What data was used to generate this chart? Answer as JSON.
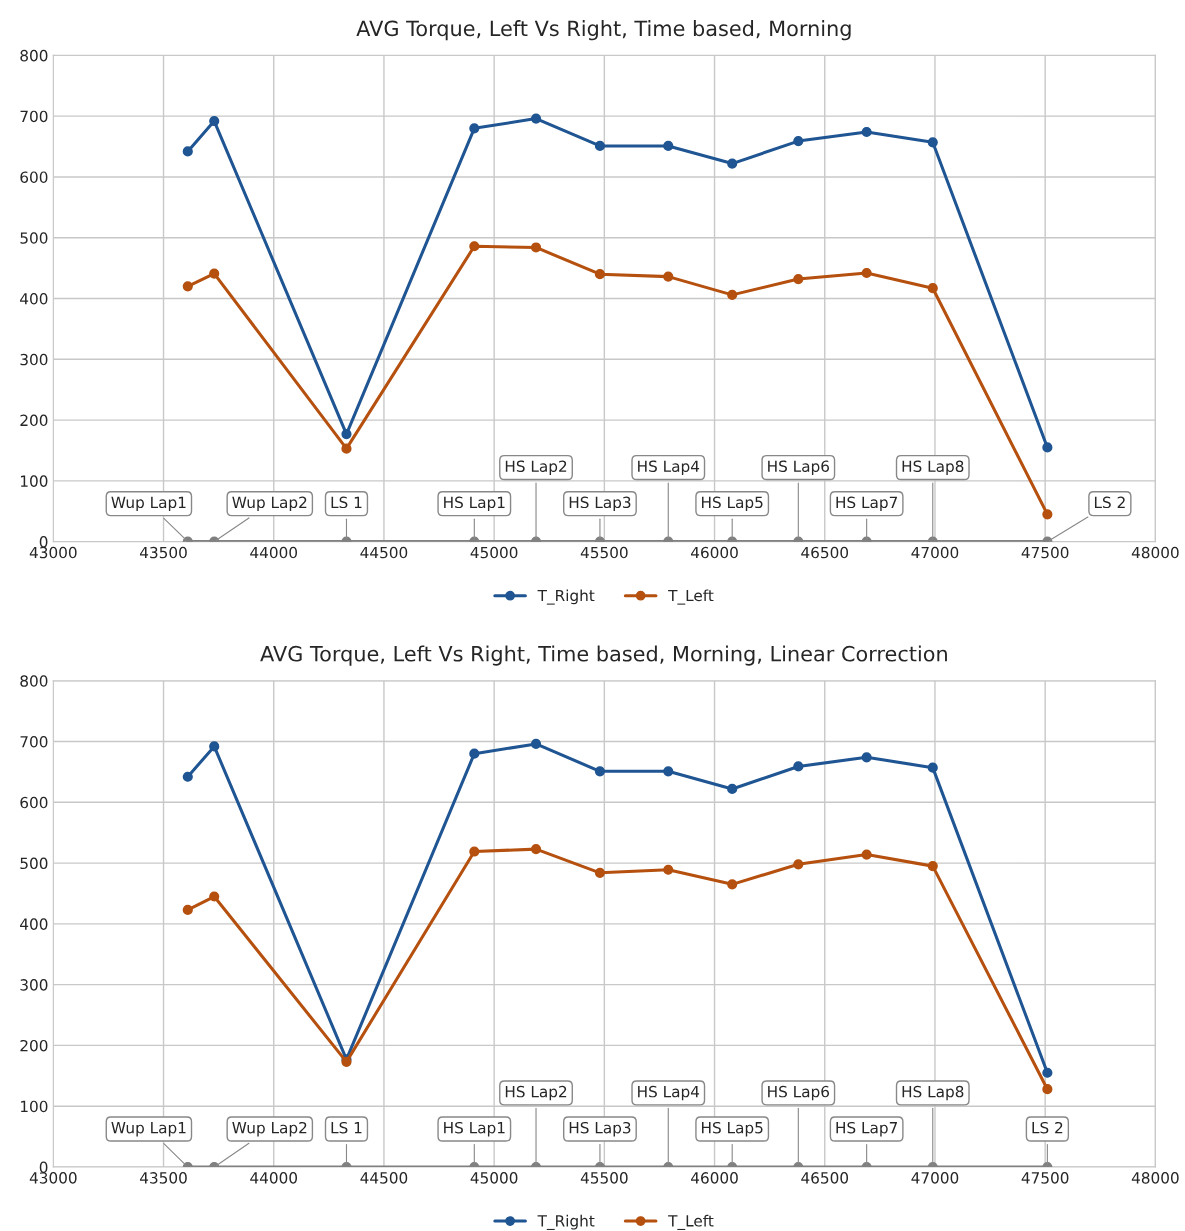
{
  "chart_data": [
    {
      "type": "line",
      "title": "AVG Torque, Left Vs Right, Time based, Morning",
      "x": [
        43610,
        43730,
        44330,
        44910,
        45190,
        45480,
        45790,
        46080,
        46380,
        46690,
        46990,
        47510
      ],
      "series": [
        {
          "name": "T_Right",
          "color": "#1f5592",
          "values": [
            642,
            692,
            177,
            680,
            696,
            651,
            651,
            622,
            659,
            674,
            657,
            155
          ]
        },
        {
          "name": "T_Left",
          "color": "#b5500f",
          "values": [
            420,
            441,
            153,
            486,
            484,
            440,
            436,
            406,
            432,
            442,
            417,
            45
          ]
        },
        {
          "color": "#808080",
          "values": [
            0,
            0,
            0,
            0,
            0,
            0,
            0,
            0,
            0,
            0,
            0,
            0
          ]
        }
      ],
      "annotations": [
        {
          "text": "Wup Lap1",
          "x": 43610,
          "y": 0
        },
        {
          "text": "Wup Lap2",
          "x": 43730,
          "y": 0
        },
        {
          "text": "LS 1",
          "x": 44330,
          "y": 0
        },
        {
          "text": "HS Lap1",
          "x": 44910,
          "y": 0
        },
        {
          "text": "HS Lap2",
          "x": 45190,
          "y": 0
        },
        {
          "text": "HS Lap3",
          "x": 45480,
          "y": 0
        },
        {
          "text": "HS Lap4",
          "x": 45790,
          "y": 0
        },
        {
          "text": "HS Lap5",
          "x": 46080,
          "y": 0
        },
        {
          "text": "HS Lap6",
          "x": 46380,
          "y": 0
        },
        {
          "text": "HS Lap7",
          "x": 46690,
          "y": 0
        },
        {
          "text": "HS Lap8",
          "x": 46990,
          "y": 0
        },
        {
          "text": "LS 2",
          "x": 47510,
          "y": 0
        }
      ],
      "xlim": [
        43000,
        48000
      ],
      "xticks": [
        43000,
        43500,
        44000,
        44500,
        45000,
        45500,
        46000,
        46500,
        47000,
        47500,
        48000
      ],
      "ylim": [
        0,
        800
      ],
      "yticks": [
        0,
        100,
        200,
        300,
        400,
        500,
        600,
        700,
        800
      ],
      "grid": true,
      "legend": "bottom",
      "marker": "circle",
      "line_style": "solid"
    },
    {
      "type": "line",
      "title": "AVG Torque, Left Vs Right, Time based, Morning, Linear Correction",
      "x": [
        43610,
        43730,
        44330,
        44910,
        45190,
        45480,
        45790,
        46080,
        46380,
        46690,
        46990,
        47510
      ],
      "series": [
        {
          "name": "T_Right",
          "color": "#1f5592",
          "values": [
            642,
            692,
            177,
            680,
            696,
            651,
            651,
            622,
            659,
            674,
            657,
            155
          ]
        },
        {
          "name": "T_Left",
          "color": "#b5500f",
          "values": [
            423,
            445,
            173,
            519,
            523,
            484,
            489,
            465,
            498,
            514,
            495,
            128
          ]
        },
        {
          "color": "#808080",
          "values": [
            0,
            0,
            0,
            0,
            0,
            0,
            0,
            0,
            0,
            0,
            0,
            0
          ]
        }
      ],
      "annotations": [
        {
          "text": "Wup Lap1",
          "x": 43610,
          "y": 0
        },
        {
          "text": "Wup Lap2",
          "x": 43730,
          "y": 0
        },
        {
          "text": "LS 1",
          "x": 44330,
          "y": 0
        },
        {
          "text": "HS Lap1",
          "x": 44910,
          "y": 0
        },
        {
          "text": "HS Lap2",
          "x": 45190,
          "y": 0
        },
        {
          "text": "HS Lap3",
          "x": 45480,
          "y": 0
        },
        {
          "text": "HS Lap4",
          "x": 45790,
          "y": 0
        },
        {
          "text": "HS Lap5",
          "x": 46080,
          "y": 0
        },
        {
          "text": "HS Lap6",
          "x": 46380,
          "y": 0
        },
        {
          "text": "HS Lap7",
          "x": 46690,
          "y": 0
        },
        {
          "text": "HS Lap8",
          "x": 46990,
          "y": 0
        },
        {
          "text": "LS 2",
          "x": 47510,
          "y": 0
        }
      ],
      "xlim": [
        43000,
        48000
      ],
      "xticks": [
        43000,
        43500,
        44000,
        44500,
        45000,
        45500,
        46000,
        46500,
        47000,
        47500,
        48000
      ],
      "ylim": [
        0,
        800
      ],
      "yticks": [
        0,
        100,
        200,
        300,
        400,
        500,
        600,
        700,
        800
      ],
      "grid": true,
      "legend": "bottom",
      "marker": "circle",
      "line_style": "solid"
    }
  ]
}
